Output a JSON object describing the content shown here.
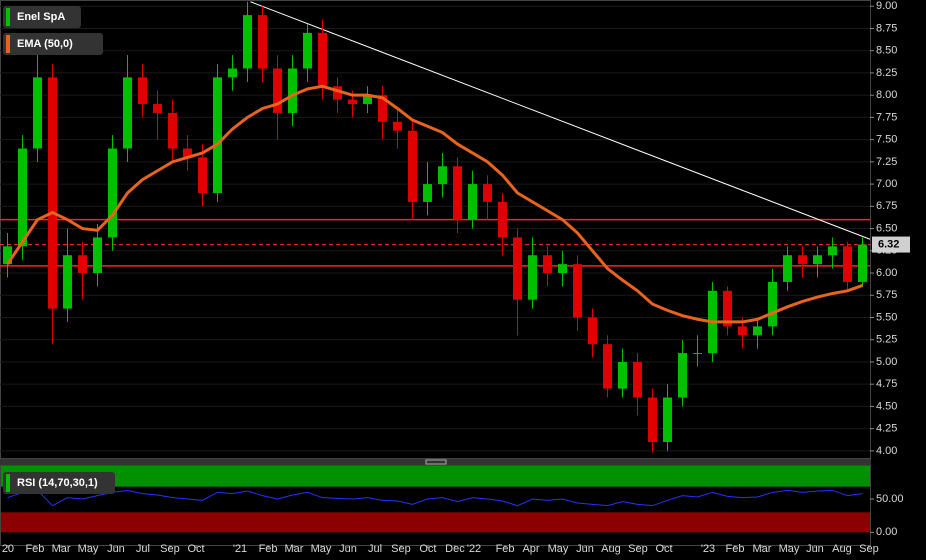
{
  "chart_data": [
    {
      "type": "candlestick",
      "name": "Enel SpA",
      "up_color": "#00c000",
      "down_color": "#e00000",
      "x": [
        0,
        1,
        2,
        3,
        4,
        5,
        6,
        7,
        8,
        9,
        10,
        11,
        12,
        13,
        14,
        15,
        16,
        17,
        18,
        19,
        20,
        21,
        22,
        23,
        24,
        25,
        26,
        27,
        28,
        29,
        30,
        31,
        32,
        33,
        34,
        35,
        36,
        37,
        38,
        39,
        40,
        41,
        42,
        43,
        44,
        45,
        46,
        47,
        48,
        49,
        50,
        51,
        52,
        53,
        54,
        55,
        56,
        57
      ],
      "open": [
        6.1,
        6.3,
        7.4,
        8.2,
        5.6,
        6.2,
        6.0,
        6.4,
        7.4,
        8.2,
        7.9,
        7.8,
        7.4,
        7.3,
        6.9,
        8.2,
        8.3,
        8.9,
        8.3,
        7.8,
        8.3,
        8.7,
        8.1,
        7.95,
        7.9,
        8.0,
        7.7,
        7.6,
        6.8,
        7.0,
        7.2,
        6.6,
        7.0,
        6.8,
        6.4,
        5.7,
        6.2,
        6.0,
        6.1,
        5.5,
        5.2,
        4.7,
        5.0,
        4.6,
        4.1,
        4.6,
        5.1,
        5.1,
        5.8,
        5.4,
        5.3,
        5.4,
        5.9,
        6.2,
        6.1,
        6.2,
        6.3,
        5.9
      ],
      "high": [
        6.45,
        7.55,
        8.45,
        8.35,
        6.5,
        6.35,
        6.55,
        7.55,
        8.45,
        8.35,
        8.05,
        7.95,
        7.55,
        7.45,
        8.35,
        8.45,
        9.05,
        9.0,
        8.45,
        8.45,
        8.8,
        8.85,
        8.2,
        8.05,
        8.1,
        8.1,
        7.85,
        7.7,
        7.25,
        7.35,
        7.3,
        7.15,
        7.1,
        6.9,
        6.5,
        6.4,
        6.3,
        6.25,
        6.2,
        5.6,
        5.3,
        5.15,
        5.1,
        4.7,
        4.75,
        5.25,
        5.3,
        5.9,
        5.85,
        5.5,
        5.5,
        6.05,
        6.3,
        6.3,
        6.3,
        6.4,
        6.35,
        6.4
      ],
      "low": [
        5.95,
        6.15,
        7.25,
        5.2,
        5.45,
        5.7,
        5.85,
        6.25,
        7.25,
        7.75,
        7.5,
        7.25,
        7.15,
        6.75,
        6.8,
        8.05,
        8.15,
        8.15,
        7.5,
        7.65,
        8.15,
        7.95,
        7.8,
        7.75,
        7.8,
        7.5,
        7.4,
        6.6,
        6.65,
        6.85,
        6.45,
        6.5,
        6.6,
        6.2,
        5.3,
        5.6,
        5.85,
        5.85,
        5.35,
        5.05,
        4.6,
        4.6,
        4.4,
        3.98,
        4.0,
        4.5,
        4.95,
        5.0,
        5.3,
        5.15,
        5.15,
        5.3,
        5.8,
        5.95,
        5.95,
        6.05,
        5.8,
        5.85
      ],
      "close": [
        6.3,
        7.4,
        8.2,
        5.6,
        6.2,
        6.0,
        6.4,
        7.4,
        8.2,
        7.9,
        7.8,
        7.4,
        7.3,
        6.9,
        8.2,
        8.3,
        8.9,
        8.3,
        7.8,
        8.3,
        8.7,
        8.1,
        7.95,
        7.9,
        8.0,
        7.7,
        7.6,
        6.8,
        7.0,
        7.2,
        6.6,
        7.0,
        6.8,
        6.4,
        5.7,
        6.2,
        6.0,
        6.1,
        5.5,
        5.2,
        4.7,
        5.0,
        4.6,
        4.1,
        4.6,
        5.1,
        5.1,
        5.8,
        5.4,
        5.3,
        5.4,
        5.9,
        6.2,
        6.1,
        6.2,
        6.3,
        5.9,
        6.32
      ],
      "ema": {
        "name": "EMA (50,0)",
        "color": "#e8641e",
        "values": [
          6.1,
          6.35,
          6.6,
          6.68,
          6.6,
          6.5,
          6.48,
          6.65,
          6.9,
          7.05,
          7.15,
          7.25,
          7.3,
          7.35,
          7.45,
          7.62,
          7.75,
          7.85,
          7.9,
          8.0,
          8.07,
          8.1,
          8.05,
          8.0,
          8.0,
          7.97,
          7.85,
          7.72,
          7.65,
          7.58,
          7.45,
          7.35,
          7.25,
          7.1,
          6.9,
          6.8,
          6.7,
          6.6,
          6.45,
          6.25,
          6.05,
          5.92,
          5.8,
          5.65,
          5.58,
          5.52,
          5.48,
          5.45,
          5.45,
          5.45,
          5.48,
          5.55,
          5.62,
          5.68,
          5.73,
          5.77,
          5.8,
          5.86
        ]
      },
      "hlines": [
        {
          "value": 6.6,
          "color": "#ff2020"
        },
        {
          "value": 6.08,
          "color": "#ff2020"
        }
      ],
      "last_value": 6.32,
      "last_color": "#ff3030",
      "trendline": {
        "x": [
          16.2,
          57.5
        ],
        "y": [
          9.05,
          6.38
        ],
        "color": "#ffffff"
      },
      "xlim": [
        -0.5,
        57.5
      ],
      "ylim": [
        3.92,
        9.07
      ],
      "yticks": [
        {
          "value": 4,
          "label": "4.00"
        },
        {
          "value": 4.25,
          "label": "4.25"
        },
        {
          "value": 4.5,
          "label": "4.50"
        },
        {
          "value": 4.75,
          "label": "4.75"
        },
        {
          "value": 5,
          "label": "5.00"
        },
        {
          "value": 5.25,
          "label": "5.25"
        },
        {
          "value": 5.5,
          "label": "5.50"
        },
        {
          "value": 5.75,
          "label": "5.75"
        },
        {
          "value": 6,
          "label": "6.00"
        },
        {
          "value": 6.25,
          "label": "6.25"
        },
        {
          "value": 6.5,
          "label": "6.50"
        },
        {
          "value": 6.75,
          "label": "6.75"
        },
        {
          "value": 7,
          "label": "7.00"
        },
        {
          "value": 7.25,
          "label": "7.25"
        },
        {
          "value": 7.5,
          "label": "7.50"
        },
        {
          "value": 7.75,
          "label": "7.75"
        },
        {
          "value": 8,
          "label": "8.00"
        },
        {
          "value": 8.25,
          "label": "8.25"
        },
        {
          "value": 8.5,
          "label": "8.50"
        },
        {
          "value": 8.75,
          "label": "8.75"
        },
        {
          "value": 9,
          "label": "9.00"
        }
      ],
      "xticks": [
        {
          "value": 0.03,
          "label": "20"
        },
        {
          "value": 1.83,
          "label": "Feb"
        },
        {
          "value": 3.57,
          "label": "Mar"
        },
        {
          "value": 5.37,
          "label": "May"
        },
        {
          "value": 7.23,
          "label": "Jun"
        },
        {
          "value": 9.03,
          "label": "Jul"
        },
        {
          "value": 10.83,
          "label": "Sep"
        },
        {
          "value": 12.57,
          "label": "Oct"
        },
        {
          "value": 15.5,
          "label": "'21"
        },
        {
          "value": 17.37,
          "label": "Feb"
        },
        {
          "value": 19.1,
          "label": "Mar"
        },
        {
          "value": 20.9,
          "label": "May"
        },
        {
          "value": 22.7,
          "label": "Jun"
        },
        {
          "value": 24.5,
          "label": "Jul"
        },
        {
          "value": 26.23,
          "label": "Sep"
        },
        {
          "value": 28.03,
          "label": "Oct"
        },
        {
          "value": 29.83,
          "label": "Dec"
        },
        {
          "value": 31.1,
          "label": "'22"
        },
        {
          "value": 33.17,
          "label": "Feb"
        },
        {
          "value": 34.9,
          "label": "Apr"
        },
        {
          "value": 36.7,
          "label": "May"
        },
        {
          "value": 38.5,
          "label": "Jun"
        },
        {
          "value": 40.23,
          "label": "Aug"
        },
        {
          "value": 42.03,
          "label": "Sep"
        },
        {
          "value": 43.77,
          "label": "Oct"
        },
        {
          "value": 46.7,
          "label": "'23"
        },
        {
          "value": 48.5,
          "label": "Feb"
        },
        {
          "value": 50.3,
          "label": "Mar"
        },
        {
          "value": 52.1,
          "label": "May"
        },
        {
          "value": 53.83,
          "label": "Jun"
        },
        {
          "value": 55.63,
          "label": "Aug"
        },
        {
          "value": 57.43,
          "label": "Sep"
        }
      ]
    },
    {
      "type": "line",
      "name": "RSI (14,70,30,1)",
      "color": "#2233ff",
      "values": [
        52,
        60,
        63,
        40,
        52,
        50,
        55,
        60,
        63,
        58,
        56,
        52,
        50,
        48,
        60,
        58,
        62,
        55,
        50,
        56,
        60,
        52,
        51,
        50,
        52,
        48,
        47,
        42,
        50,
        52,
        46,
        52,
        50,
        47,
        40,
        50,
        48,
        50,
        44,
        42,
        40,
        46,
        42,
        40,
        48,
        55,
        53,
        60,
        54,
        52,
        53,
        60,
        63,
        60,
        62,
        63,
        55,
        58
      ],
      "upper": 70,
      "upper_color": "#009000",
      "lower": 30,
      "lower_color": "#8b0000",
      "ylim": [
        -19,
        101
      ],
      "yticks": [
        {
          "value": 0,
          "label": "0.00"
        },
        {
          "value": 50,
          "label": "50.00"
        }
      ]
    }
  ]
}
